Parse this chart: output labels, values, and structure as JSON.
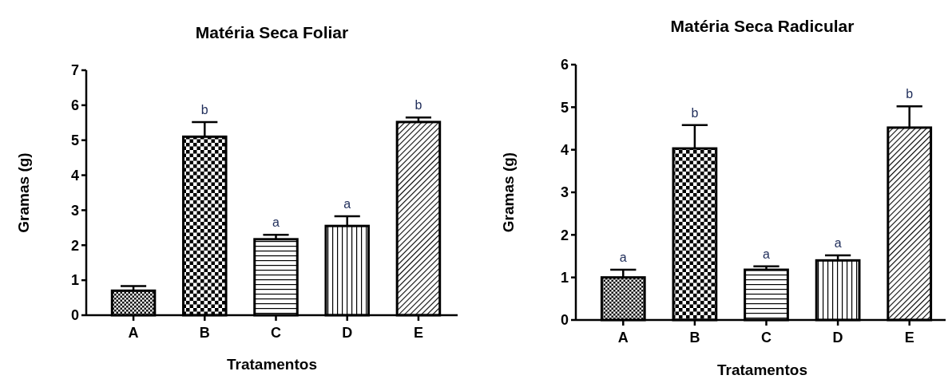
{
  "chart_data": [
    {
      "type": "bar",
      "title": "Matéria Seca Foliar",
      "xlabel": "Tratamentos",
      "ylabel": "Gramas (g)",
      "categories": [
        "A",
        "B",
        "C",
        "D",
        "E"
      ],
      "values": [
        0.7,
        5.1,
        2.17,
        2.55,
        5.52
      ],
      "errors": [
        0.13,
        0.42,
        0.13,
        0.28,
        0.13
      ],
      "color": "#000000",
      "ylim": [
        0,
        7
      ],
      "yticks": [
        0,
        1,
        2,
        3,
        4,
        5,
        6,
        7
      ],
      "grid": false,
      "annotations": [
        {
          "text": "b",
          "x": "B",
          "y": 5.52
        },
        {
          "text": "a",
          "x": "C",
          "y": 2.3
        },
        {
          "text": "a",
          "x": "D",
          "y": 2.83
        },
        {
          "text": "b",
          "x": "E",
          "y": 5.65
        }
      ]
    },
    {
      "type": "bar",
      "title": "Matéria Seca Radicular",
      "xlabel": "Tratamentos",
      "ylabel": "Gramas (g)",
      "categories": [
        "A",
        "B",
        "C",
        "D",
        "E"
      ],
      "values": [
        1.0,
        4.03,
        1.18,
        1.4,
        4.52
      ],
      "errors": [
        0.18,
        0.55,
        0.08,
        0.12,
        0.5
      ],
      "color": "#000000",
      "ylim": [
        0,
        6
      ],
      "yticks": [
        0,
        1,
        2,
        3,
        4,
        5,
        6
      ],
      "grid": false,
      "annotations": [
        {
          "text": "a",
          "x": "A",
          "y": 1.18
        },
        {
          "text": "b",
          "x": "B",
          "y": 4.58
        },
        {
          "text": "a",
          "x": "C",
          "y": 1.26
        },
        {
          "text": "a",
          "x": "D",
          "y": 1.52
        },
        {
          "text": "b",
          "x": "E",
          "y": 5.02
        }
      ]
    }
  ]
}
